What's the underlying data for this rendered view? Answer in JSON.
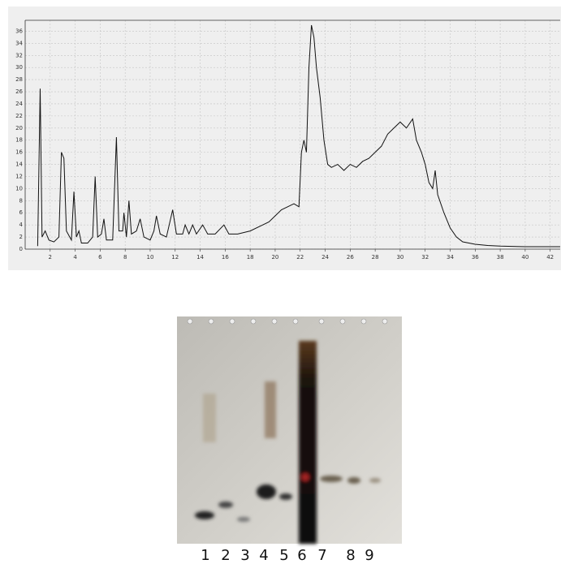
{
  "chart_data": {
    "type": "line",
    "x": [
      1.0,
      1.2,
      1.35,
      1.6,
      1.9,
      2.3,
      2.7,
      2.9,
      3.1,
      3.3,
      3.7,
      3.9,
      4.1,
      4.3,
      4.5,
      5.0,
      5.4,
      5.6,
      5.8,
      6.1,
      6.3,
      6.5,
      7.0,
      7.3,
      7.5,
      7.8,
      7.9,
      8.1,
      8.3,
      8.5,
      8.9,
      9.2,
      9.5,
      10.0,
      10.3,
      10.5,
      10.8,
      11.3,
      11.8,
      12.1,
      12.6,
      12.8,
      13.1,
      13.4,
      13.7,
      14.2,
      14.6,
      15.2,
      15.9,
      16.3,
      17.0,
      18.0,
      19.0,
      19.5,
      20.0,
      20.5,
      21.0,
      21.5,
      21.9,
      22.1,
      22.3,
      22.5,
      22.7,
      22.9,
      23.1,
      23.3,
      23.6,
      23.9,
      24.2,
      24.5,
      25.0,
      25.5,
      26.0,
      26.5,
      27.0,
      27.5,
      28.0,
      28.5,
      29.0,
      29.5,
      30.0,
      30.5,
      31.0,
      31.3,
      31.7,
      32.0,
      32.3,
      32.6,
      32.8,
      33.0,
      33.5,
      34.0,
      34.5,
      35.0,
      36.0,
      37.0,
      38.0,
      40.0,
      42.8
    ],
    "series": [
      {
        "color": "#111111",
        "values": [
          0.5,
          26.5,
          2,
          3,
          1.5,
          1.2,
          2,
          16,
          15,
          3,
          1.5,
          9.5,
          2,
          3,
          1,
          1,
          2,
          12,
          2,
          2.5,
          5,
          1.5,
          1.5,
          18.5,
          3,
          3,
          6,
          2,
          8,
          2.5,
          3,
          5,
          2,
          1.5,
          3,
          5.5,
          2.5,
          2,
          6.5,
          2.5,
          2.5,
          4,
          2.5,
          4,
          2.5,
          4,
          2.5,
          2.5,
          4,
          2.5,
          2.5,
          3,
          4,
          4.5,
          5.5,
          6.5,
          7,
          7.5,
          7,
          16,
          18,
          16,
          30,
          37,
          35,
          30,
          25,
          18,
          14,
          13.5,
          14,
          13,
          14,
          13.5,
          14.5,
          15,
          16,
          17,
          19,
          20,
          21,
          20,
          21.5,
          18,
          16,
          14,
          11,
          10,
          13,
          9,
          6,
          3.5,
          2,
          1.2,
          0.8,
          0.6,
          0.5,
          0.4,
          0.4
        ]
      }
    ],
    "xlim": [
      0,
      42.8
    ],
    "ylim": [
      0,
      37.8
    ],
    "xticks": [
      2,
      4,
      6,
      8,
      10,
      12,
      14,
      16,
      18,
      20,
      22,
      24,
      26,
      28,
      30,
      32,
      34,
      36,
      38,
      40,
      42
    ],
    "yticks": [
      0,
      2,
      4,
      6,
      8,
      10,
      12,
      14,
      16,
      18,
      20,
      22,
      24,
      26,
      28,
      30,
      32,
      34,
      36
    ],
    "grid": true
  },
  "gel": {
    "lanes": [
      "1",
      "2",
      "3",
      "4",
      "5",
      "6",
      "7",
      "8",
      "9"
    ]
  }
}
